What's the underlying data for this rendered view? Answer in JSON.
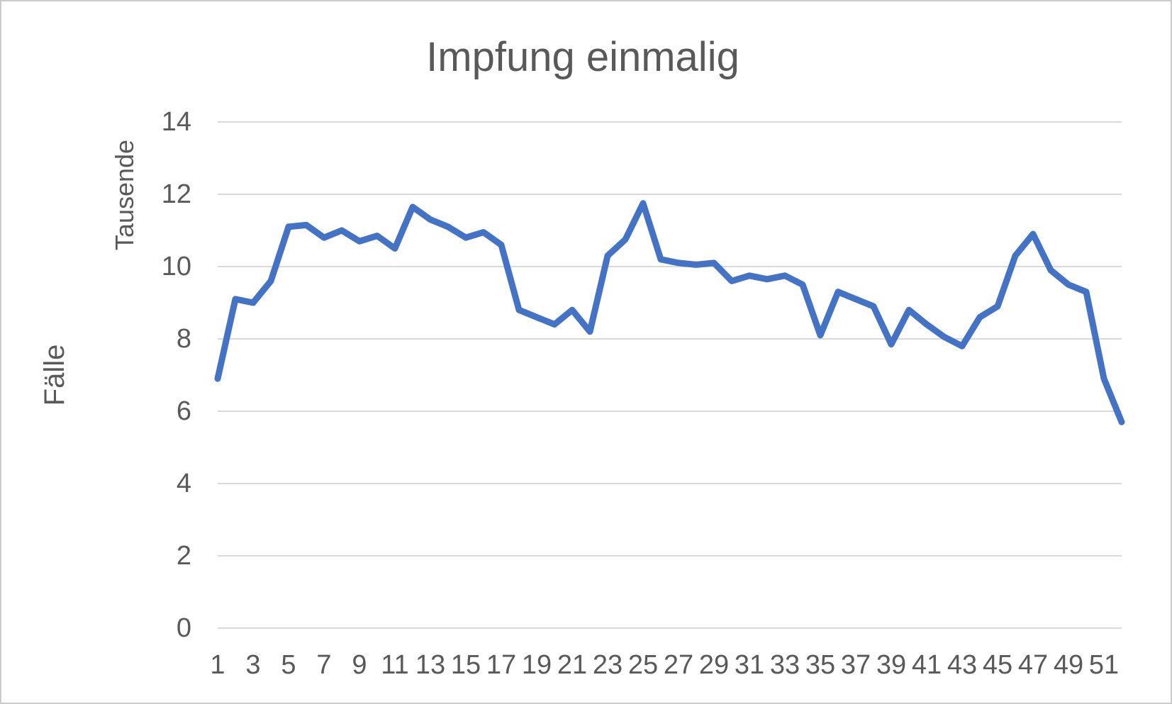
{
  "title": "Impfung einmalig",
  "y_axis": {
    "title": "Fälle",
    "unit": "Tausende",
    "ticks": [
      0,
      2,
      4,
      6,
      8,
      10,
      12,
      14
    ]
  },
  "x_axis": {
    "labels": [
      "1",
      "3",
      "5",
      "7",
      "9",
      "11",
      "13",
      "15",
      "17",
      "19",
      "21",
      "23",
      "25",
      "27",
      "29",
      "31",
      "33",
      "35",
      "37",
      "39",
      "41",
      "43",
      "45",
      "47",
      "49",
      "51"
    ]
  },
  "colors": {
    "line": "#4472C4",
    "gridline": "#d9d9d9",
    "text": "#595959"
  },
  "chart_data": {
    "type": "line",
    "title": "Impfung einmalig",
    "xlabel": "",
    "ylabel": "Fälle (Tausende)",
    "ylim": [
      0,
      14
    ],
    "grid": true,
    "legend_position": "none",
    "x": [
      1,
      2,
      3,
      4,
      5,
      6,
      7,
      8,
      9,
      10,
      11,
      12,
      13,
      14,
      15,
      16,
      17,
      18,
      19,
      20,
      21,
      22,
      23,
      24,
      25,
      26,
      27,
      28,
      29,
      30,
      31,
      32,
      33,
      34,
      35,
      36,
      37,
      38,
      39,
      40,
      41,
      42,
      43,
      44,
      45,
      46,
      47,
      48,
      49,
      50,
      51,
      52
    ],
    "series": [
      {
        "name": "Impfung einmalig",
        "values": [
          6.9,
          9.1,
          9.0,
          9.6,
          11.1,
          11.15,
          10.8,
          11.0,
          10.7,
          10.85,
          10.5,
          11.65,
          11.3,
          11.1,
          10.8,
          10.95,
          10.6,
          8.8,
          8.6,
          8.4,
          8.8,
          8.2,
          10.3,
          10.75,
          11.75,
          10.2,
          10.1,
          10.05,
          10.1,
          9.6,
          9.75,
          9.65,
          9.75,
          9.5,
          8.1,
          9.3,
          9.1,
          8.9,
          7.85,
          8.8,
          8.4,
          8.05,
          7.8,
          8.6,
          8.9,
          10.3,
          10.9,
          9.9,
          9.5,
          9.3,
          6.9,
          5.7
        ]
      }
    ]
  }
}
